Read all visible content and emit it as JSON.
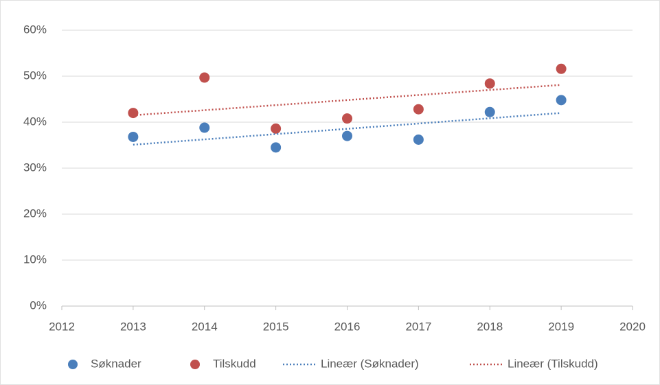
{
  "chart_data": {
    "type": "scatter",
    "xlim": [
      2012,
      2020
    ],
    "xticks": [
      2012,
      2013,
      2014,
      2015,
      2016,
      2017,
      2018,
      2019,
      2020
    ],
    "ylim": [
      0,
      60
    ],
    "yticks": [
      {
        "value": 0,
        "label": "0%"
      },
      {
        "value": 10,
        "label": "10%"
      },
      {
        "value": 20,
        "label": "20%"
      },
      {
        "value": 30,
        "label": "30%"
      },
      {
        "value": 40,
        "label": "40%"
      },
      {
        "value": 50,
        "label": "50%"
      },
      {
        "value": 60,
        "label": "60%"
      }
    ],
    "grid": true,
    "legend": "bottom",
    "series": [
      {
        "name": "Søknader",
        "color": "#4a7ebb",
        "mode": "markers",
        "x": [
          2013,
          2014,
          2015,
          2016,
          2017,
          2018,
          2019
        ],
        "values": [
          36.8,
          38.8,
          34.5,
          37.0,
          36.2,
          42.2,
          44.8
        ]
      },
      {
        "name": "Tilskudd",
        "color": "#c0504d",
        "mode": "markers",
        "x": [
          2013,
          2014,
          2015,
          2016,
          2017,
          2018,
          2019
        ],
        "values": [
          42.0,
          49.7,
          38.6,
          40.8,
          42.8,
          48.4,
          51.6
        ]
      },
      {
        "name": "Lineær (Søknader)",
        "color": "#4a7ebb",
        "mode": "dotted-line",
        "x": [
          2013,
          2019
        ],
        "values": [
          35.1,
          42.0
        ]
      },
      {
        "name": "Lineær (Tilskudd)",
        "color": "#c0504d",
        "mode": "dotted-line",
        "x": [
          2013,
          2019
        ],
        "values": [
          41.5,
          48.1
        ]
      }
    ]
  }
}
